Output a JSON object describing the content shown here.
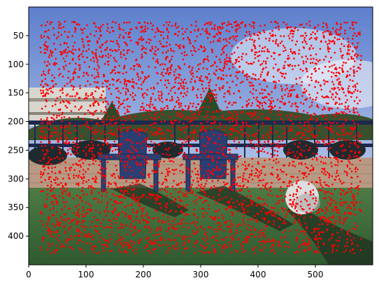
{
  "chart_data": {
    "type": "scatter",
    "title": "",
    "xlabel": "",
    "ylabel": "",
    "xlim": [
      0,
      600
    ],
    "ylim": [
      450,
      0
    ],
    "x_ticks": [
      0,
      100,
      200,
      300,
      400,
      500
    ],
    "y_ticks": [
      50,
      100,
      150,
      200,
      250,
      300,
      350,
      400
    ],
    "x_tick_labels": [
      "0",
      "100",
      "200",
      "300",
      "400",
      "500"
    ],
    "y_tick_labels": [
      "50",
      "100",
      "150",
      "200",
      "250",
      "300",
      "350",
      "400"
    ],
    "grid": false,
    "background": "photo of a rooftop terrace: blue sky, distant buildings and trees, black railing with planters, two blue adirondack chairs, white sphere, green lawn with shadows",
    "series": [
      {
        "marker_color": "#ff0000",
        "marker": "dot",
        "approx_count": 4500,
        "x_range": [
          20,
          580
        ],
        "y_range": [
          25,
          430
        ],
        "distribution": "dense, roughly uniform"
      }
    ]
  },
  "colors": {
    "points": "#ff0000",
    "sky_top": "#6f8fd6",
    "sky_bottom": "#c9d7ec",
    "lawn": "#3d6b3a",
    "deck": "#b89a84",
    "chair": "#2b3f73",
    "railing": "#1d2a4d"
  }
}
